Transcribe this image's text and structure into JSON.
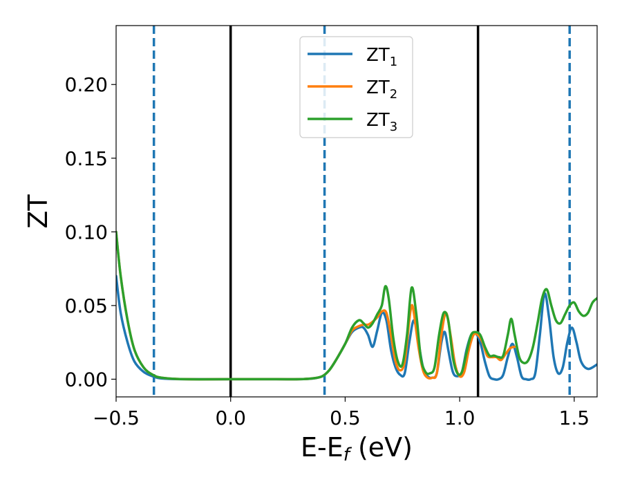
{
  "chart_data": {
    "type": "line",
    "xlabel": {
      "main": "E-E",
      "sub": "f",
      "tail": " (eV)"
    },
    "ylabel": "ZT",
    "xlim": [
      -0.5,
      1.6
    ],
    "ylim": [
      -0.012,
      0.24
    ],
    "xticks": [
      -0.5,
      0.0,
      0.5,
      1.0,
      1.5
    ],
    "xtick_labels": [
      "−0.5",
      "0.0",
      "0.5",
      "1.0",
      "1.5"
    ],
    "yticks": [
      0.0,
      0.05,
      0.1,
      0.15,
      0.2
    ],
    "ytick_labels": [
      "0.00",
      "0.05",
      "0.10",
      "0.15",
      "0.20"
    ],
    "grid": false,
    "legend_position": "top-center",
    "vlines_solid": [
      0.0,
      1.08
    ],
    "vlines_dashed": [
      -0.335,
      0.41,
      1.48
    ],
    "vline_solid_color": "#000000",
    "vline_dashed_color": "#1f77b4",
    "series": [
      {
        "name": "ZT",
        "sub": "1",
        "color": "#1f77b4",
        "points": [
          [
            -0.5,
            0.07
          ],
          [
            -0.48,
            0.045
          ],
          [
            -0.45,
            0.025
          ],
          [
            -0.42,
            0.012
          ],
          [
            -0.38,
            0.005
          ],
          [
            -0.34,
            0.002
          ],
          [
            -0.3,
            0.0005
          ],
          [
            -0.2,
            0.0
          ],
          [
            0.0,
            0.0
          ],
          [
            0.2,
            0.0
          ],
          [
            0.3,
            0.0
          ],
          [
            0.36,
            0.0005
          ],
          [
            0.4,
            0.002
          ],
          [
            0.43,
            0.006
          ],
          [
            0.46,
            0.013
          ],
          [
            0.5,
            0.024
          ],
          [
            0.53,
            0.032
          ],
          [
            0.56,
            0.035
          ],
          [
            0.58,
            0.035
          ],
          [
            0.6,
            0.03
          ],
          [
            0.62,
            0.022
          ],
          [
            0.64,
            0.033
          ],
          [
            0.66,
            0.045
          ],
          [
            0.68,
            0.04
          ],
          [
            0.7,
            0.02
          ],
          [
            0.72,
            0.008
          ],
          [
            0.74,
            0.003
          ],
          [
            0.76,
            0.004
          ],
          [
            0.78,
            0.025
          ],
          [
            0.8,
            0.04
          ],
          [
            0.82,
            0.025
          ],
          [
            0.84,
            0.008
          ],
          [
            0.86,
            0.002
          ],
          [
            0.88,
            0.001
          ],
          [
            0.9,
            0.004
          ],
          [
            0.92,
            0.025
          ],
          [
            0.935,
            0.032
          ],
          [
            0.95,
            0.02
          ],
          [
            0.97,
            0.005
          ],
          [
            0.99,
            0.002
          ],
          [
            1.01,
            0.005
          ],
          [
            1.03,
            0.02
          ],
          [
            1.05,
            0.03
          ],
          [
            1.07,
            0.031
          ],
          [
            1.09,
            0.025
          ],
          [
            1.11,
            0.012
          ],
          [
            1.13,
            0.002
          ],
          [
            1.15,
            0.0
          ],
          [
            1.17,
            0.0
          ],
          [
            1.19,
            0.003
          ],
          [
            1.21,
            0.015
          ],
          [
            1.23,
            0.024
          ],
          [
            1.25,
            0.015
          ],
          [
            1.27,
            0.002
          ],
          [
            1.29,
            0.0
          ],
          [
            1.31,
            0.0
          ],
          [
            1.33,
            0.004
          ],
          [
            1.35,
            0.03
          ],
          [
            1.37,
            0.058
          ],
          [
            1.39,
            0.042
          ],
          [
            1.41,
            0.015
          ],
          [
            1.43,
            0.004
          ],
          [
            1.45,
            0.008
          ],
          [
            1.47,
            0.025
          ],
          [
            1.49,
            0.035
          ],
          [
            1.51,
            0.025
          ],
          [
            1.53,
            0.012
          ],
          [
            1.56,
            0.007
          ],
          [
            1.6,
            0.01
          ]
        ]
      },
      {
        "name": "ZT",
        "sub": "2",
        "color": "#ff7f0e",
        "points": [
          [
            -0.5,
            0.1
          ],
          [
            -0.48,
            0.07
          ],
          [
            -0.45,
            0.04
          ],
          [
            -0.42,
            0.02
          ],
          [
            -0.38,
            0.008
          ],
          [
            -0.34,
            0.003
          ],
          [
            -0.3,
            0.001
          ],
          [
            -0.2,
            0.0
          ],
          [
            0.0,
            0.0
          ],
          [
            0.2,
            0.0
          ],
          [
            0.3,
            0.0
          ],
          [
            0.36,
            0.0006
          ],
          [
            0.4,
            0.002
          ],
          [
            0.43,
            0.006
          ],
          [
            0.46,
            0.013
          ],
          [
            0.5,
            0.024
          ],
          [
            0.53,
            0.033
          ],
          [
            0.56,
            0.036
          ],
          [
            0.58,
            0.037
          ],
          [
            0.6,
            0.037
          ],
          [
            0.62,
            0.039
          ],
          [
            0.64,
            0.042
          ],
          [
            0.66,
            0.046
          ],
          [
            0.68,
            0.045
          ],
          [
            0.7,
            0.03
          ],
          [
            0.72,
            0.012
          ],
          [
            0.74,
            0.006
          ],
          [
            0.76,
            0.012
          ],
          [
            0.78,
            0.04
          ],
          [
            0.79,
            0.05
          ],
          [
            0.8,
            0.045
          ],
          [
            0.82,
            0.022
          ],
          [
            0.84,
            0.006
          ],
          [
            0.86,
            0.001
          ],
          [
            0.88,
            0.001
          ],
          [
            0.9,
            0.004
          ],
          [
            0.92,
            0.03
          ],
          [
            0.94,
            0.045
          ],
          [
            0.96,
            0.03
          ],
          [
            0.98,
            0.01
          ],
          [
            1.0,
            0.002
          ],
          [
            1.02,
            0.005
          ],
          [
            1.04,
            0.02
          ],
          [
            1.06,
            0.03
          ],
          [
            1.08,
            0.03
          ],
          [
            1.1,
            0.025
          ],
          [
            1.12,
            0.016
          ],
          [
            1.14,
            0.015
          ],
          [
            1.16,
            0.015
          ],
          [
            1.18,
            0.013
          ],
          [
            1.2,
            0.017
          ],
          [
            1.22,
            0.021
          ],
          [
            1.24,
            0.022
          ]
        ]
      },
      {
        "name": "ZT",
        "sub": "3",
        "color": "#2ca02c",
        "points": [
          [
            -0.5,
            0.1
          ],
          [
            -0.48,
            0.07
          ],
          [
            -0.45,
            0.04
          ],
          [
            -0.42,
            0.02
          ],
          [
            -0.38,
            0.008
          ],
          [
            -0.34,
            0.003
          ],
          [
            -0.3,
            0.001
          ],
          [
            -0.2,
            0.0
          ],
          [
            0.0,
            0.0
          ],
          [
            0.2,
            0.0
          ],
          [
            0.3,
            0.0
          ],
          [
            0.36,
            0.0006
          ],
          [
            0.4,
            0.002
          ],
          [
            0.43,
            0.006
          ],
          [
            0.46,
            0.013
          ],
          [
            0.5,
            0.024
          ],
          [
            0.53,
            0.035
          ],
          [
            0.56,
            0.04
          ],
          [
            0.58,
            0.038
          ],
          [
            0.6,
            0.035
          ],
          [
            0.62,
            0.038
          ],
          [
            0.64,
            0.044
          ],
          [
            0.66,
            0.05
          ],
          [
            0.675,
            0.063
          ],
          [
            0.69,
            0.055
          ],
          [
            0.71,
            0.028
          ],
          [
            0.73,
            0.012
          ],
          [
            0.75,
            0.01
          ],
          [
            0.77,
            0.03
          ],
          [
            0.79,
            0.062
          ],
          [
            0.81,
            0.045
          ],
          [
            0.83,
            0.015
          ],
          [
            0.85,
            0.005
          ],
          [
            0.87,
            0.004
          ],
          [
            0.89,
            0.008
          ],
          [
            0.91,
            0.03
          ],
          [
            0.93,
            0.045
          ],
          [
            0.95,
            0.04
          ],
          [
            0.97,
            0.015
          ],
          [
            0.99,
            0.004
          ],
          [
            1.01,
            0.005
          ],
          [
            1.03,
            0.018
          ],
          [
            1.05,
            0.03
          ],
          [
            1.07,
            0.032
          ],
          [
            1.09,
            0.03
          ],
          [
            1.11,
            0.022
          ],
          [
            1.13,
            0.016
          ],
          [
            1.15,
            0.016
          ],
          [
            1.17,
            0.015
          ],
          [
            1.19,
            0.016
          ],
          [
            1.21,
            0.03
          ],
          [
            1.225,
            0.041
          ],
          [
            1.24,
            0.03
          ],
          [
            1.26,
            0.015
          ],
          [
            1.28,
            0.011
          ],
          [
            1.3,
            0.013
          ],
          [
            1.32,
            0.022
          ],
          [
            1.34,
            0.038
          ],
          [
            1.36,
            0.055
          ],
          [
            1.38,
            0.061
          ],
          [
            1.4,
            0.05
          ],
          [
            1.42,
            0.04
          ],
          [
            1.44,
            0.038
          ],
          [
            1.46,
            0.044
          ],
          [
            1.48,
            0.05
          ],
          [
            1.5,
            0.052
          ],
          [
            1.52,
            0.046
          ],
          [
            1.54,
            0.043
          ],
          [
            1.56,
            0.045
          ],
          [
            1.58,
            0.052
          ],
          [
            1.6,
            0.055
          ]
        ]
      }
    ]
  }
}
